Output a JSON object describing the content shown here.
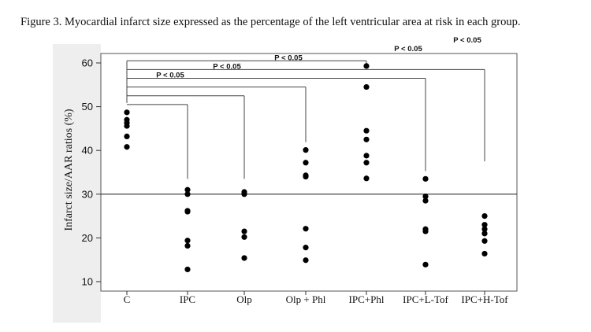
{
  "caption": "Figure 3. Myocardial infarct size expressed as the percentage of the left ventricular area at risk in each group.",
  "chart_data": {
    "type": "scatter",
    "title": "",
    "ylabel": "Infarct size/AAR ratios (%)",
    "xlabel": "",
    "ylim": [
      8,
      63
    ],
    "yticks": [
      10,
      20,
      30,
      40,
      50,
      60
    ],
    "reference_line": 30,
    "categories": [
      "C",
      "IPC",
      "Olp",
      "Olp + Phl",
      "IPC+Phl",
      "IPC+L-Tof",
      "IPC+H-Tof"
    ],
    "points": [
      [
        48.7,
        47.0,
        46.3,
        45.6,
        43.2,
        40.8
      ],
      [
        31.0,
        30.0,
        26.2,
        26.0,
        19.4,
        18.2,
        12.8
      ],
      [
        30.5,
        30.0,
        21.5,
        20.2,
        15.4
      ],
      [
        40.1,
        37.2,
        34.3,
        34.0,
        22.1,
        17.8,
        14.9
      ],
      [
        59.3,
        54.5,
        44.5,
        42.5,
        38.8,
        37.2,
        33.6
      ],
      [
        33.5,
        29.5,
        28.5,
        22.0,
        21.5,
        13.9
      ],
      [
        25.0,
        23.0,
        22.0,
        21.0,
        19.3,
        16.4
      ]
    ],
    "annotations": [
      {
        "label": "P < 0.05",
        "to": "IPC",
        "bracket_y": 50.5,
        "label_y": 54.5
      },
      {
        "label": "P < 0.05",
        "to": "Olp",
        "bracket_y": 52.5,
        "label_y": 56.5
      },
      {
        "label": "P < 0.05",
        "to": "Olp + Phl",
        "bracket_y": 54.5,
        "label_y": 58.5
      },
      {
        "label": "",
        "to": "IPC+Phl",
        "bracket_y": 60.5,
        "label_y": null
      },
      {
        "label": "P < 0.05",
        "to": "IPC+L-Tof",
        "bracket_y": 56.5,
        "label_y": 60.5
      },
      {
        "label": "P < 0.05",
        "to": "IPC+H-Tof",
        "bracket_y": 58.5,
        "label_y": 62.5
      }
    ]
  }
}
